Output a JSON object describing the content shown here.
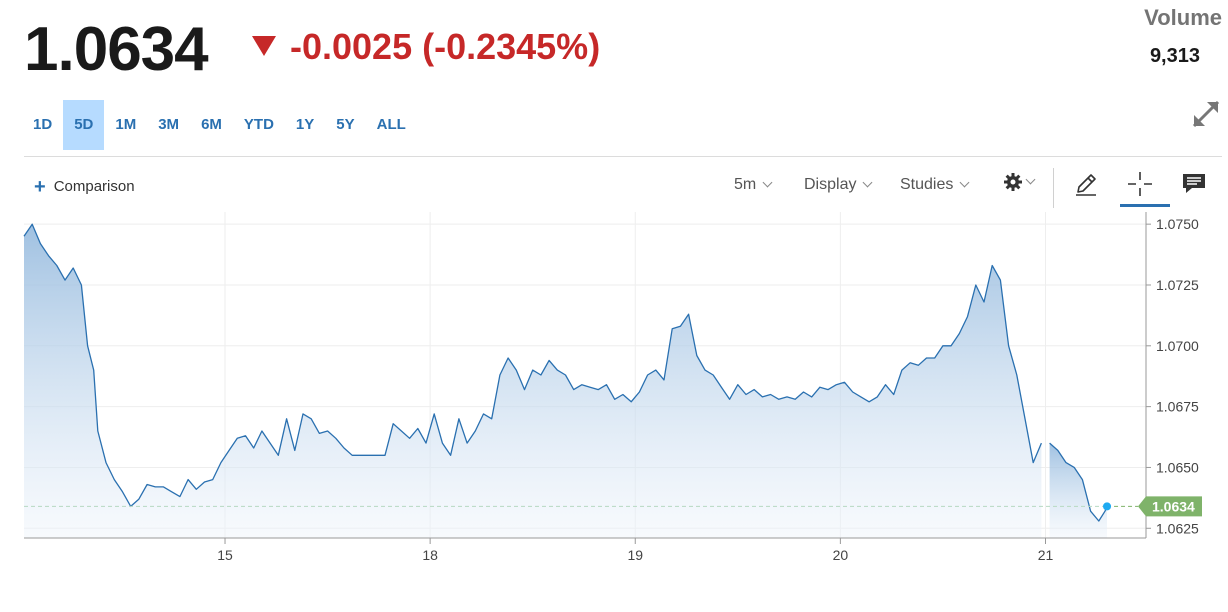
{
  "quote": {
    "price": "1.0634",
    "change": "-0.0025 (-0.2345%)",
    "volume_label": "Volume",
    "volume_value": "9,313"
  },
  "ranges": [
    {
      "label": "1D",
      "active": false
    },
    {
      "label": "5D",
      "active": true
    },
    {
      "label": "1M",
      "active": false
    },
    {
      "label": "3M",
      "active": false
    },
    {
      "label": "6M",
      "active": false
    },
    {
      "label": "YTD",
      "active": false
    },
    {
      "label": "1Y",
      "active": false
    },
    {
      "label": "5Y",
      "active": false
    },
    {
      "label": "ALL",
      "active": false
    }
  ],
  "toolbar": {
    "comparison_label": "Comparison",
    "interval_label": "5m",
    "display_label": "Display",
    "studies_label": "Studies"
  },
  "icons": [
    "plus-icon",
    "chevron-down-icon",
    "gear-icon",
    "pencil-icon",
    "crosshair-icon",
    "comment-icon",
    "expand-icon"
  ],
  "colors": {
    "line": "#2a70b0",
    "fill": "#c9ddef",
    "negative": "#c62828",
    "active_range": "#b6dbff",
    "last_price_badge": "#7fb36a",
    "last_point": "#1eaaf1"
  },
  "chart_data": {
    "type": "area",
    "y_ticks": [
      "1.0750",
      "1.0725",
      "1.0700",
      "1.0675",
      "1.0650",
      "1.0625"
    ],
    "y_tick_values": [
      1.075,
      1.0725,
      1.07,
      1.0675,
      1.065,
      1.0625
    ],
    "ylim": [
      1.0621,
      1.0755
    ],
    "x_ticks": [
      "15",
      "18",
      "19",
      "20",
      "21"
    ],
    "x_tick_positions": [
      1,
      2,
      3,
      4,
      5
    ],
    "xlim": [
      0.02,
      5.49
    ],
    "last_value": "1.0634",
    "series": [
      {
        "x": [
          0.02,
          0.06,
          0.1,
          0.14,
          0.18,
          0.22,
          0.26,
          0.3,
          0.33,
          0.36,
          0.38,
          0.42,
          0.46,
          0.5,
          0.54,
          0.58,
          0.62,
          0.66,
          0.7,
          0.74,
          0.78,
          0.82,
          0.86,
          0.9,
          0.94,
          0.98,
          1.02,
          1.06,
          1.1,
          1.14,
          1.18,
          1.22,
          1.26,
          1.3,
          1.34,
          1.38,
          1.42,
          1.46,
          1.5,
          1.54,
          1.58,
          1.62,
          1.66,
          1.7,
          1.74,
          1.78,
          1.82,
          1.86,
          1.9,
          1.94,
          1.98,
          2.02,
          2.06,
          2.1,
          2.14,
          2.18,
          2.22,
          2.26,
          2.3,
          2.34,
          2.38,
          2.42,
          2.46,
          2.5,
          2.54,
          2.58,
          2.62,
          2.66,
          2.7,
          2.74,
          2.78,
          2.82,
          2.86,
          2.9,
          2.94,
          2.98,
          3.02,
          3.06,
          3.1,
          3.14,
          3.18,
          3.22,
          3.26,
          3.3,
          3.34,
          3.38,
          3.42,
          3.46,
          3.5,
          3.54,
          3.58,
          3.62,
          3.66,
          3.7,
          3.74,
          3.78,
          3.82,
          3.86,
          3.9,
          3.94,
          3.98,
          4.02,
          4.06,
          4.1,
          4.14,
          4.18,
          4.22,
          4.26,
          4.3,
          4.34,
          4.38,
          4.42,
          4.46,
          4.5,
          4.54,
          4.58,
          4.62,
          4.66,
          4.7,
          4.74,
          4.78,
          4.82,
          4.86,
          4.9,
          4.94,
          4.98
        ],
        "values": [
          1.0745,
          1.075,
          1.0742,
          1.0737,
          1.0733,
          1.0727,
          1.0732,
          1.0725,
          1.07,
          1.069,
          1.0665,
          1.0652,
          1.0645,
          1.064,
          1.0634,
          1.0637,
          1.0643,
          1.0642,
          1.0642,
          1.064,
          1.0638,
          1.0645,
          1.0641,
          1.0644,
          1.0645,
          1.0652,
          1.0657,
          1.0662,
          1.0663,
          1.0658,
          1.0665,
          1.066,
          1.0655,
          1.067,
          1.0657,
          1.0672,
          1.067,
          1.0664,
          1.0665,
          1.0662,
          1.0658,
          1.0655,
          1.0655,
          1.0655,
          1.0655,
          1.0655,
          1.0668,
          1.0665,
          1.0662,
          1.0666,
          1.066,
          1.0672,
          1.066,
          1.0655,
          1.067,
          1.066,
          1.0665,
          1.0672,
          1.067,
          1.0688,
          1.0695,
          1.069,
          1.0682,
          1.069,
          1.0688,
          1.0694,
          1.069,
          1.0688,
          1.0682,
          1.0684,
          1.0683,
          1.0682,
          1.0684,
          1.0678,
          1.068,
          1.0677,
          1.0681,
          1.0688,
          1.069,
          1.0686,
          1.0707,
          1.0708,
          1.0713,
          1.0696,
          1.069,
          1.0688,
          1.0683,
          1.0678,
          1.0684,
          1.068,
          1.0682,
          1.0679,
          1.068,
          1.0678,
          1.0679,
          1.0678,
          1.0681,
          1.0679,
          1.0683,
          1.0682,
          1.0684,
          1.0685,
          1.0681,
          1.0679,
          1.0677,
          1.0679,
          1.0684,
          1.068,
          1.069,
          1.0693,
          1.0692,
          1.0695,
          1.0695,
          1.07,
          1.07,
          1.0705,
          1.0712,
          1.0725,
          1.0718,
          1.0733,
          1.0727,
          1.07,
          1.0688,
          1.067,
          1.0652,
          1.066
        ]
      },
      {
        "x": [
          5.02,
          5.06,
          5.1,
          5.14,
          5.18,
          5.22,
          5.26,
          5.29,
          5.3
        ],
        "values": [
          1.066,
          1.0657,
          1.0652,
          1.065,
          1.0645,
          1.0632,
          1.0628,
          1.0632,
          1.0634
        ]
      }
    ]
  }
}
